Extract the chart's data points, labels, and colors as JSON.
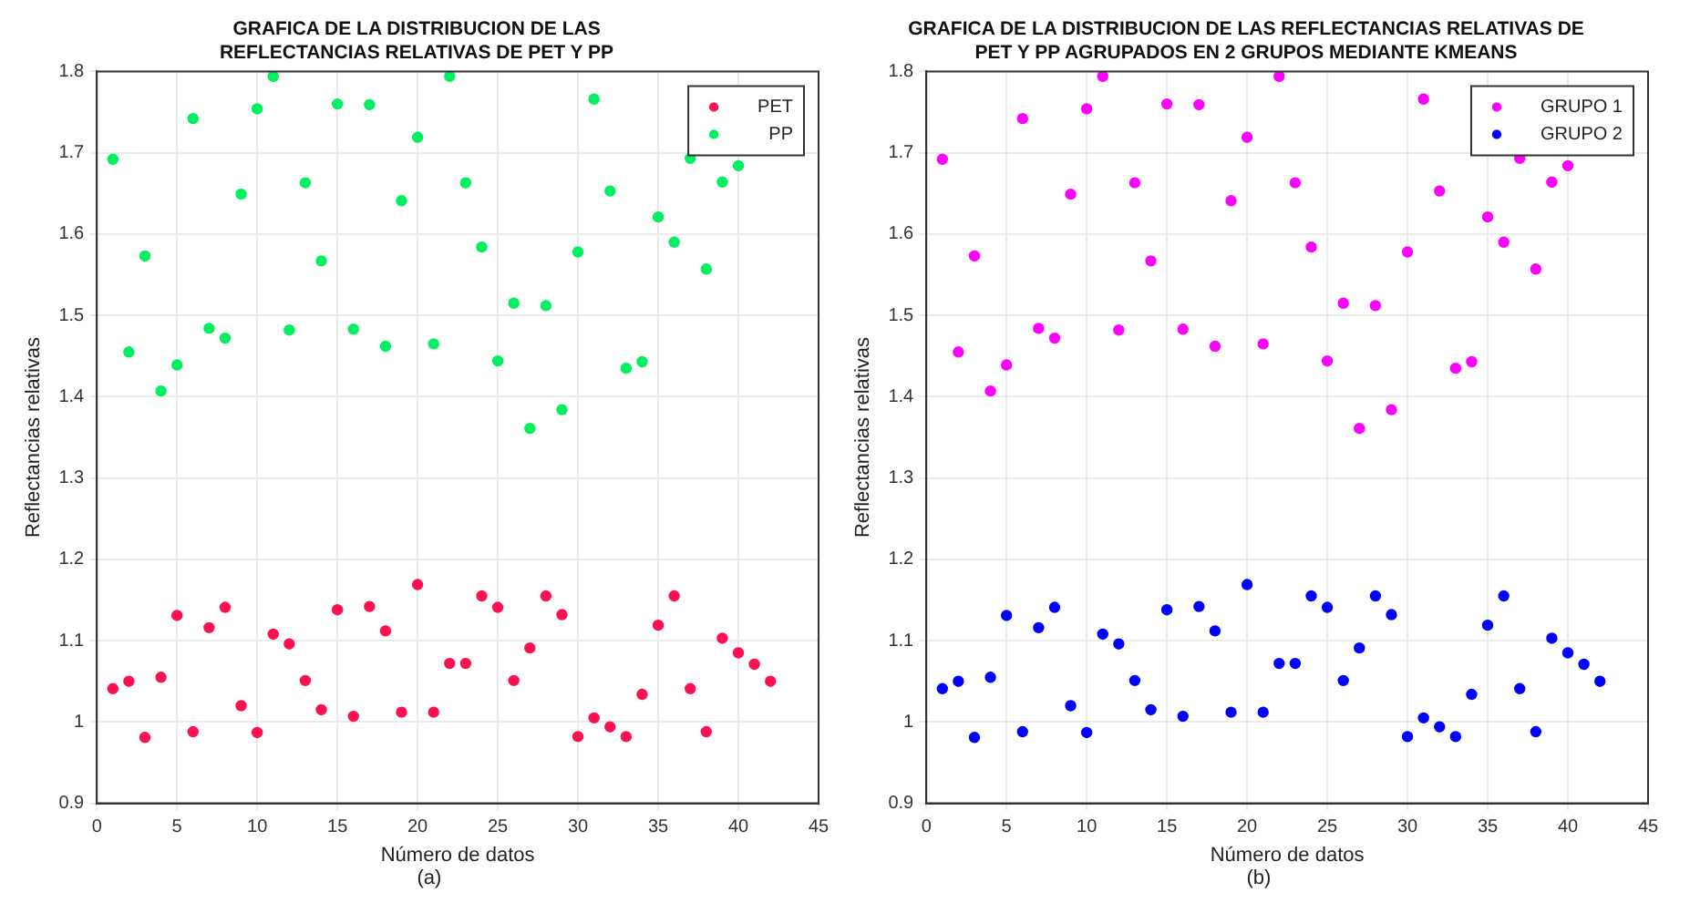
{
  "chart_data": [
    {
      "type": "scatter",
      "title": "GRAFICA DE LA DISTRIBUCION DE LAS\nREFLECTANCIAS RELATIVAS DE PET Y PP",
      "xlabel": "Número de datos",
      "ylabel": "Reflectancias relativas",
      "annotations": [
        "(a)"
      ],
      "xlim": [
        0,
        45
      ],
      "xticks": [
        0,
        5,
        10,
        15,
        20,
        25,
        30,
        35,
        40,
        45
      ],
      "ylim": [
        0.9,
        1.8
      ],
      "yticks": [
        0.9,
        1,
        1.1,
        1.2,
        1.3,
        1.4,
        1.5,
        1.6,
        1.7,
        1.8
      ],
      "grid": true,
      "legend": "top right",
      "marker": "circle",
      "series": [
        {
          "name": "PET",
          "color": "#ff1050",
          "x": [
            1,
            2,
            3,
            4,
            5,
            6,
            7,
            8,
            9,
            10,
            11,
            12,
            13,
            14,
            15,
            16,
            17,
            18,
            19,
            20,
            21,
            22,
            23,
            24,
            25,
            26,
            27,
            28,
            29,
            30,
            31,
            32,
            33,
            34,
            35,
            36,
            37,
            38,
            39,
            40,
            41,
            42
          ],
          "values": [
            1.041,
            1.05,
            0.981,
            1.055,
            1.131,
            0.988,
            1.116,
            1.141,
            1.02,
            0.987,
            1.108,
            1.096,
            1.051,
            1.015,
            1.138,
            1.007,
            1.142,
            1.112,
            1.012,
            1.169,
            1.012,
            1.072,
            1.072,
            1.155,
            1.141,
            1.051,
            1.091,
            1.155,
            1.132,
            0.982,
            1.005,
            0.994,
            0.982,
            1.034,
            1.119,
            1.155,
            1.041,
            0.988,
            1.103,
            1.085,
            1.071,
            1.05
          ]
        },
        {
          "name": "PP",
          "color": "#00f060",
          "x": [
            1,
            2,
            3,
            4,
            5,
            6,
            7,
            8,
            9,
            10,
            11,
            12,
            13,
            14,
            15,
            16,
            17,
            18,
            19,
            20,
            21,
            22,
            23,
            24,
            25,
            26,
            27,
            28,
            29,
            30,
            31,
            32,
            33,
            34,
            35,
            36,
            37,
            38,
            39,
            40
          ],
          "values": [
            1.692,
            1.455,
            1.573,
            1.407,
            1.439,
            1.742,
            1.484,
            1.472,
            1.649,
            1.754,
            1.794,
            1.482,
            1.663,
            1.567,
            1.76,
            1.483,
            1.759,
            1.462,
            1.641,
            1.719,
            1.465,
            1.794,
            1.663,
            1.584,
            1.444,
            1.515,
            1.361,
            1.512,
            1.384,
            1.578,
            1.766,
            1.653,
            1.435,
            1.443,
            1.621,
            1.59,
            1.693,
            1.557,
            1.664,
            1.684
          ]
        }
      ]
    },
    {
      "type": "scatter",
      "title": "GRAFICA DE LA DISTRIBUCION DE LAS REFLECTANCIAS RELATIVAS DE\nPET Y PP AGRUPADOS EN 2 GRUPOS MEDIANTE KMEANS",
      "xlabel": "Número de datos",
      "ylabel": "Reflectancias relativas",
      "annotations": [
        "(b)"
      ],
      "xlim": [
        0,
        45
      ],
      "xticks": [
        0,
        5,
        10,
        15,
        20,
        25,
        30,
        35,
        40,
        45
      ],
      "ylim": [
        0.9,
        1.8
      ],
      "yticks": [
        0.9,
        1,
        1.1,
        1.2,
        1.3,
        1.4,
        1.5,
        1.6,
        1.7,
        1.8
      ],
      "grid": true,
      "legend": "top right",
      "marker": "circle",
      "series": [
        {
          "name": "GRUPO 1",
          "color": "#ff00ff",
          "x": [
            1,
            2,
            3,
            4,
            5,
            6,
            7,
            8,
            9,
            10,
            11,
            12,
            13,
            14,
            15,
            16,
            17,
            18,
            19,
            20,
            21,
            22,
            23,
            24,
            25,
            26,
            27,
            28,
            29,
            30,
            31,
            32,
            33,
            34,
            35,
            36,
            37,
            38,
            39,
            40
          ],
          "values": [
            1.692,
            1.455,
            1.573,
            1.407,
            1.439,
            1.742,
            1.484,
            1.472,
            1.649,
            1.754,
            1.794,
            1.482,
            1.663,
            1.567,
            1.76,
            1.483,
            1.759,
            1.462,
            1.641,
            1.719,
            1.465,
            1.794,
            1.663,
            1.584,
            1.444,
            1.515,
            1.361,
            1.512,
            1.384,
            1.578,
            1.766,
            1.653,
            1.435,
            1.443,
            1.621,
            1.59,
            1.693,
            1.557,
            1.664,
            1.684
          ]
        },
        {
          "name": "GRUPO 2",
          "color": "#0000ff",
          "x": [
            1,
            2,
            3,
            4,
            5,
            6,
            7,
            8,
            9,
            10,
            11,
            12,
            13,
            14,
            15,
            16,
            17,
            18,
            19,
            20,
            21,
            22,
            23,
            24,
            25,
            26,
            27,
            28,
            29,
            30,
            31,
            32,
            33,
            34,
            35,
            36,
            37,
            38,
            39,
            40,
            41,
            42
          ],
          "values": [
            1.041,
            1.05,
            0.981,
            1.055,
            1.131,
            0.988,
            1.116,
            1.141,
            1.02,
            0.987,
            1.108,
            1.096,
            1.051,
            1.015,
            1.138,
            1.007,
            1.142,
            1.112,
            1.012,
            1.169,
            1.012,
            1.072,
            1.072,
            1.155,
            1.141,
            1.051,
            1.091,
            1.155,
            1.132,
            0.982,
            1.005,
            0.994,
            0.982,
            1.034,
            1.119,
            1.155,
            1.041,
            0.988,
            1.103,
            1.085,
            1.071,
            1.05
          ]
        }
      ]
    }
  ]
}
